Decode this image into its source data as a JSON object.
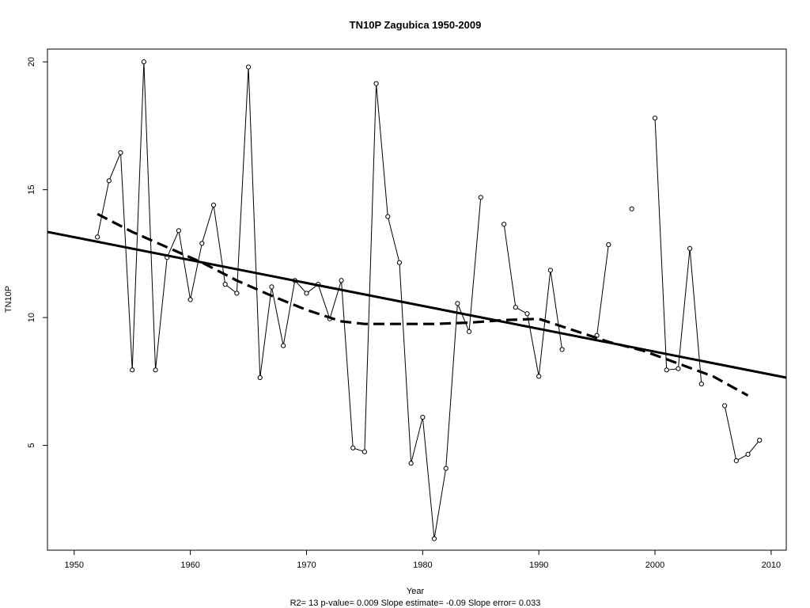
{
  "chart_data": {
    "type": "line",
    "title": "TN10P   Zagubica 1950-2009",
    "xlabel": "Year",
    "ylabel": "TN10P",
    "subtitle": "R2= 13  p-value= 0.009  Slope estimate= -0.09  Slope error= 0.033",
    "xlim": [
      1947.7,
      2011.3
    ],
    "ylim": [
      0.9,
      20.5
    ],
    "xticks": [
      1950,
      1960,
      1970,
      1980,
      1990,
      2000,
      2010
    ],
    "yticks": [
      5,
      10,
      15,
      20
    ],
    "grid": false,
    "series": [
      {
        "style": "points-connected",
        "x": [
          1952,
          1953,
          1954,
          1955,
          1956,
          1957,
          1958,
          1959,
          1960,
          1961,
          1962,
          1963,
          1964,
          1965,
          1966,
          1967,
          1968,
          1969,
          1970,
          1971,
          1972,
          1973,
          1974,
          1975,
          1976,
          1977,
          1978,
          1979,
          1980,
          1981,
          1982,
          1983,
          1984,
          1985,
          1986,
          1987,
          1988,
          1989,
          1990,
          1991,
          1992,
          1993,
          1994,
          1995,
          1996,
          1997,
          1998,
          1999,
          2000,
          2001,
          2002,
          2003,
          2004,
          2005,
          2006,
          2007,
          2008,
          2009
        ],
        "y": [
          13.15,
          15.35,
          16.45,
          7.95,
          20.0,
          7.95,
          12.35,
          13.4,
          10.7,
          12.9,
          14.4,
          11.3,
          10.95,
          19.8,
          7.65,
          11.2,
          8.9,
          11.45,
          10.95,
          11.3,
          9.95,
          11.45,
          4.9,
          4.75,
          19.15,
          13.95,
          12.15,
          4.3,
          6.1,
          1.35,
          4.1,
          10.55,
          9.45,
          14.7,
          null,
          13.65,
          10.4,
          10.15,
          7.7,
          11.85,
          8.75,
          null,
          null,
          9.3,
          12.85,
          null,
          14.25,
          null,
          17.8,
          7.95,
          8.0,
          12.7,
          7.4,
          null,
          6.55,
          4.4,
          4.65,
          5.2
        ]
      },
      {
        "style": "dashed-thick",
        "x": [
          1952,
          1955,
          1958,
          1961,
          1964,
          1967,
          1970,
          1973,
          1975,
          1978,
          1981,
          1984,
          1987,
          1990,
          1993,
          1996,
          1999,
          2002,
          2005,
          2008
        ],
        "y": [
          14.05,
          13.35,
          12.75,
          12.15,
          11.45,
          10.85,
          10.3,
          9.85,
          9.75,
          9.75,
          9.75,
          9.8,
          9.9,
          9.95,
          9.5,
          9.05,
          8.7,
          8.2,
          7.7,
          6.95
        ]
      },
      {
        "style": "solid-thick",
        "x": [
          1947.7,
          2011.3
        ],
        "y": [
          13.35,
          7.65
        ]
      }
    ]
  }
}
